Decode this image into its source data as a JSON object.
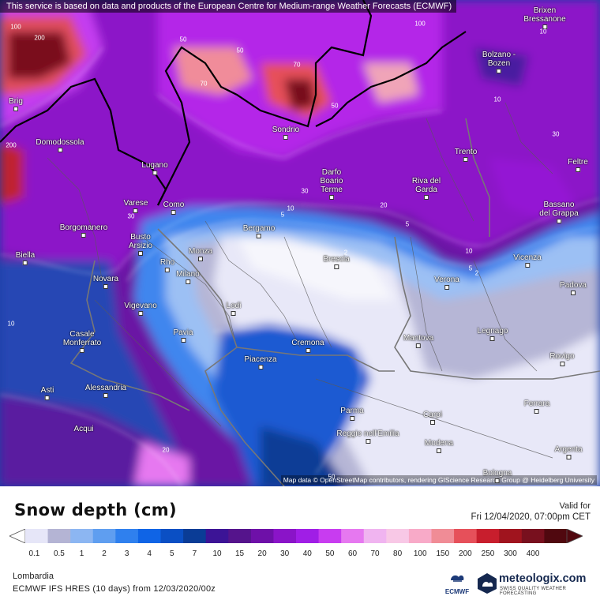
{
  "notice": "This service is based on data and products of the European Centre for Medium-range Weather Forecasts (ECMWF)",
  "attribution": "Map data © OpenStreetMap contributors, rendering GIScience Research Group @ Heidelberg University",
  "legend": {
    "title": "Snow depth (cm)",
    "valid_label": "Valid for",
    "valid_time": "Fri 12/04/2020, 07:00pm CET",
    "region": "Lombardia",
    "model_run": "ECMWF IFS HRES (10 days)  from  12/03/2020/00z",
    "ecmwf_logo": "ECMWF",
    "brand": "meteologix.com",
    "brand_tagline": "SWISS QUALITY WEATHER FORECASTING",
    "ticks": [
      "0.1",
      "0.5",
      "1",
      "2",
      "3",
      "4",
      "5",
      "7",
      "10",
      "15",
      "20",
      "30",
      "40",
      "50",
      "60",
      "70",
      "80",
      "100",
      "150",
      "200",
      "250",
      "300",
      "400"
    ],
    "colors": [
      "#e6e6f8",
      "#b4b4d4",
      "#8cb6f2",
      "#5f9ef0",
      "#2f80ee",
      "#0f64e6",
      "#0a4fc4",
      "#0a3c96",
      "#3c1496",
      "#55148c",
      "#6e10a8",
      "#8a14c8",
      "#a01ee6",
      "#c83cf0",
      "#e678f0",
      "#f0b4f0",
      "#f8c8e6",
      "#f8aac8",
      "#f08c96",
      "#e6505a",
      "#c81e2d",
      "#a0141e",
      "#78101e",
      "#50080f"
    ]
  },
  "cities": [
    {
      "name": "Brixen"
    },
    {
      "name": "Bressanone"
    },
    {
      "name": "Bolzano -"
    },
    {
      "name": "Bozen"
    },
    {
      "name": "Brig"
    },
    {
      "name": "Domodossola"
    },
    {
      "name": "Sondrio"
    },
    {
      "name": "Trento"
    },
    {
      "name": "Feltre"
    },
    {
      "name": "Lugano"
    },
    {
      "name": "Darfo"
    },
    {
      "name": "Boario"
    },
    {
      "name": "Terme"
    },
    {
      "name": "Riva del"
    },
    {
      "name": "Garda"
    },
    {
      "name": "Varese"
    },
    {
      "name": "Como"
    },
    {
      "name": "Bassano"
    },
    {
      "name": "del Grappa"
    },
    {
      "name": "Borgomanero"
    },
    {
      "name": "Bergamo"
    },
    {
      "name": "Busto"
    },
    {
      "name": "Arsizio"
    },
    {
      "name": "Biella"
    },
    {
      "name": "Rho"
    },
    {
      "name": "Monza"
    },
    {
      "name": "Brescia"
    },
    {
      "name": "Vicenza"
    },
    {
      "name": "Milano"
    },
    {
      "name": "Novara"
    },
    {
      "name": "Verona"
    },
    {
      "name": "Padova"
    },
    {
      "name": "Vigevano"
    },
    {
      "name": "Lodi"
    },
    {
      "name": "Casale"
    },
    {
      "name": "Monferrato"
    },
    {
      "name": "Pavia"
    },
    {
      "name": "Cremona"
    },
    {
      "name": "Mantova"
    },
    {
      "name": "Legnago"
    },
    {
      "name": "Rovigo"
    },
    {
      "name": "Piacenza"
    },
    {
      "name": "Asti"
    },
    {
      "name": "Alessandria"
    },
    {
      "name": "Parma"
    },
    {
      "name": "Carpi"
    },
    {
      "name": "Ferrara"
    },
    {
      "name": "Acqui"
    },
    {
      "name": "Reggio nell'Emilia"
    },
    {
      "name": "Modena"
    },
    {
      "name": "Argenta"
    },
    {
      "name": "Bologna"
    }
  ],
  "contour_labels": [
    "100",
    "200",
    "50",
    "50",
    "70",
    "70",
    "50",
    "100",
    "10",
    "10",
    "30",
    "30",
    "5",
    "10",
    "20",
    "5",
    "2",
    "2",
    "5",
    "10",
    "30",
    "10",
    "200",
    "50",
    "20"
  ]
}
